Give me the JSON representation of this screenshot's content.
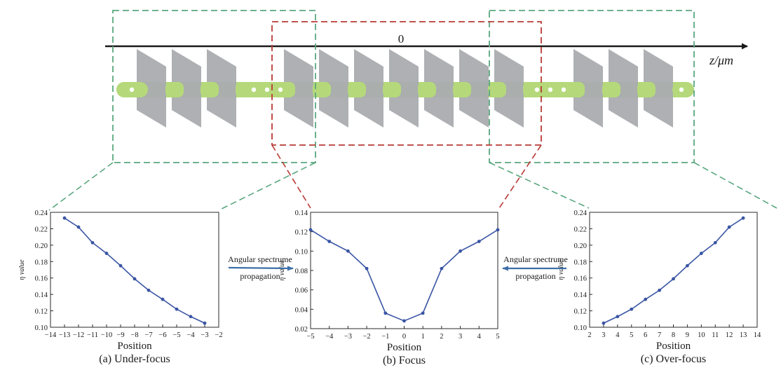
{
  "diagram": {
    "zero_label": "0",
    "axis_label": "z/μm",
    "colors": {
      "green_box": "#5aa77f",
      "red_box": "#b83a35",
      "beam": "#b5d97a",
      "plate": "#aaacaf",
      "axis": "#1a1a1a"
    }
  },
  "arrows": {
    "left": {
      "line1": "Angular spectrume",
      "line2": "propagation",
      "direction": "right"
    },
    "right": {
      "line1": "Angular spectrume",
      "line2": "propagation",
      "direction": "left"
    },
    "color": "#3d6fa8"
  },
  "chart_data": [
    {
      "type": "line",
      "caption": "(a) Under-focus",
      "xlabel": "Position",
      "ylabel": "η value",
      "xlim": [
        -14,
        -2
      ],
      "ylim": [
        0.1,
        0.24
      ],
      "xticks": [
        "−14",
        "−13",
        "−12",
        "−11",
        "−10",
        "−9",
        "−8",
        "−7",
        "−6",
        "−5",
        "−4",
        "−3",
        "−2"
      ],
      "yticks": [
        "0.10",
        "0.12",
        "0.14",
        "0.16",
        "0.18",
        "0.20",
        "0.22",
        "0.24"
      ],
      "x": [
        -13,
        -12,
        -11,
        -10,
        -9,
        -8,
        -7,
        -6,
        -5,
        -4,
        -3
      ],
      "y": [
        0.233,
        0.222,
        0.203,
        0.19,
        0.175,
        0.159,
        0.145,
        0.134,
        0.122,
        0.113,
        0.105
      ],
      "color": "#3a55a4"
    },
    {
      "type": "line",
      "caption": "(b) Focus",
      "xlabel": "Position",
      "ylabel": "η value",
      "xlim": [
        -5,
        5
      ],
      "ylim": [
        0.02,
        0.14
      ],
      "xticks": [
        "−5",
        "−4",
        "−3",
        "−2",
        "−1",
        "0",
        "1",
        "2",
        "3",
        "4",
        "5"
      ],
      "yticks": [
        "0.02",
        "0.04",
        "0.06",
        "0.08",
        "0.10",
        "0.12",
        "0.14"
      ],
      "x": [
        -5,
        -4,
        -3,
        -2,
        -1,
        0,
        1,
        2,
        3,
        4,
        5
      ],
      "y": [
        0.122,
        0.11,
        0.1,
        0.082,
        0.036,
        0.028,
        0.036,
        0.082,
        0.1,
        0.11,
        0.122
      ],
      "color": "#3a55a4"
    },
    {
      "type": "line",
      "caption": "(c) Over-focus",
      "xlabel": "Position",
      "ylabel": "η value",
      "xlim": [
        2,
        14
      ],
      "ylim": [
        0.1,
        0.24
      ],
      "xticks": [
        "2",
        "3",
        "4",
        "5",
        "6",
        "7",
        "8",
        "9",
        "10",
        "11",
        "12",
        "13",
        "14"
      ],
      "yticks": [
        "0.10",
        "0.12",
        "0.14",
        "0.16",
        "0.18",
        "0.20",
        "0.22",
        "0.24"
      ],
      "x": [
        3,
        4,
        5,
        6,
        7,
        8,
        9,
        10,
        11,
        12,
        13
      ],
      "y": [
        0.105,
        0.113,
        0.122,
        0.134,
        0.145,
        0.159,
        0.175,
        0.19,
        0.203,
        0.222,
        0.233
      ],
      "color": "#3a55a4"
    }
  ]
}
